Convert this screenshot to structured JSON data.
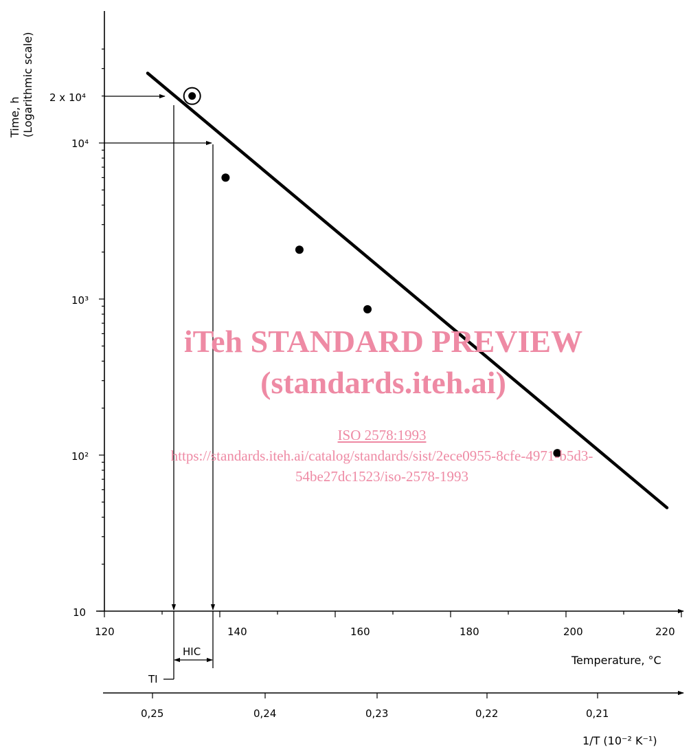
{
  "chart_data": {
    "type": "scatter",
    "title": "",
    "xlabel": "Temperature, °C",
    "x2label": "1/T (10⁻² K⁻¹)",
    "ylabel_line1": "Time, h",
    "ylabel_line2": "(Logarithmic scale)",
    "yscale": "log",
    "xlim": [
      120,
      220
    ],
    "ylim": [
      10,
      40000
    ],
    "grid": false,
    "x_ticks": [
      "120",
      "140",
      "160",
      "180",
      "200",
      "220"
    ],
    "x2_ticks": [
      "0,25",
      "0,24",
      "0,23",
      "0,22",
      "0,21"
    ],
    "y_ticks": [
      "10",
      "10³",
      "10²",
      "10⁴",
      "2 x 10⁴"
    ],
    "series": [
      {
        "points": [
          {
            "x": 141,
            "y": 6000
          },
          {
            "x": 153.8,
            "y": 2070
          },
          {
            "x": 165.6,
            "y": 860
          },
          {
            "x": 198.5,
            "y": 103
          }
        ]
      }
    ],
    "regression_line": {
      "x": [
        127.5,
        217.5
      ],
      "y": [
        28000,
        46
      ]
    },
    "highlight_point": {
      "x": 135.2,
      "y": 20000
    },
    "annotations": {
      "hic_label": "HIC",
      "ti_label": "TI",
      "ti_x": 135.2,
      "hic_x_end": 143.8,
      "y_target_1": 20000,
      "y_target_2": 10000
    }
  },
  "watermark": {
    "line1": "iTeh STANDARD PREVIEW",
    "line2": "(standards.iteh.ai)",
    "line3": "ISO 2578:1993",
    "line4": "https://standards.iteh.ai/catalog/standards/sist/2ece0955-8cfe-4971-b5d3-",
    "line5": "54be27dc1523/iso-2578-1993"
  }
}
